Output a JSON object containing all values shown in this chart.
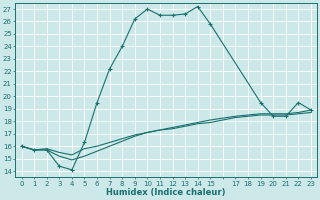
{
  "background_color": "#cce8e8",
  "grid_color": "#ffffff",
  "line_color": "#1a7070",
  "xlim": [
    -0.5,
    23.5
  ],
  "ylim": [
    13.5,
    27.5
  ],
  "yticks": [
    14,
    15,
    16,
    17,
    18,
    19,
    20,
    21,
    22,
    23,
    24,
    25,
    26,
    27
  ],
  "ytick_labels": [
    "14",
    "15",
    "16",
    "17",
    "18",
    "19",
    "20",
    "21",
    "22",
    "23",
    "24",
    "25",
    "26",
    "27"
  ],
  "xticks": [
    0,
    1,
    2,
    3,
    4,
    5,
    6,
    7,
    8,
    9,
    10,
    11,
    12,
    13,
    14,
    15,
    17,
    18,
    19,
    20,
    21,
    22,
    23
  ],
  "xtick_labels": [
    "0",
    "1",
    "2",
    "3",
    "4",
    "5",
    "6",
    "7",
    "8",
    "9",
    "10",
    "11",
    "12",
    "13",
    "14",
    "15",
    "17",
    "18",
    "19",
    "20",
    "21",
    "22",
    "23"
  ],
  "xlabel": "Humidex (Indice chaleur)",
  "series1_x": [
    0,
    1,
    2,
    3,
    4,
    5,
    6,
    7,
    8,
    9,
    10,
    11,
    12,
    13,
    14,
    15,
    19,
    20,
    21,
    22,
    23
  ],
  "series1_y": [
    16.0,
    15.7,
    15.7,
    14.4,
    14.1,
    16.3,
    19.5,
    22.2,
    24.0,
    26.2,
    27.0,
    26.5,
    26.5,
    26.6,
    27.2,
    25.8,
    19.5,
    18.4,
    18.4,
    19.5,
    18.9
  ],
  "series2_x": [
    0,
    1,
    2,
    3,
    4,
    5,
    6,
    7,
    8,
    9,
    10,
    11,
    12,
    13,
    14,
    15,
    17,
    18,
    19,
    20,
    21,
    22,
    23
  ],
  "series2_y": [
    16.0,
    15.7,
    15.8,
    15.5,
    15.3,
    15.8,
    16.0,
    16.3,
    16.6,
    16.9,
    17.1,
    17.3,
    17.5,
    17.7,
    17.9,
    18.1,
    18.4,
    18.5,
    18.6,
    18.6,
    18.6,
    18.7,
    18.9
  ],
  "series3_x": [
    0,
    1,
    2,
    3,
    4,
    5,
    6,
    7,
    8,
    9,
    10,
    11,
    12,
    13,
    14,
    15,
    17,
    18,
    19,
    20,
    21,
    22,
    23
  ],
  "series3_y": [
    16.0,
    15.7,
    15.7,
    15.2,
    14.9,
    15.2,
    15.6,
    16.0,
    16.4,
    16.8,
    17.1,
    17.3,
    17.4,
    17.6,
    17.8,
    17.9,
    18.3,
    18.4,
    18.5,
    18.5,
    18.5,
    18.6,
    18.7
  ],
  "tick_fontsize": 5.0,
  "xlabel_fontsize": 6.0
}
